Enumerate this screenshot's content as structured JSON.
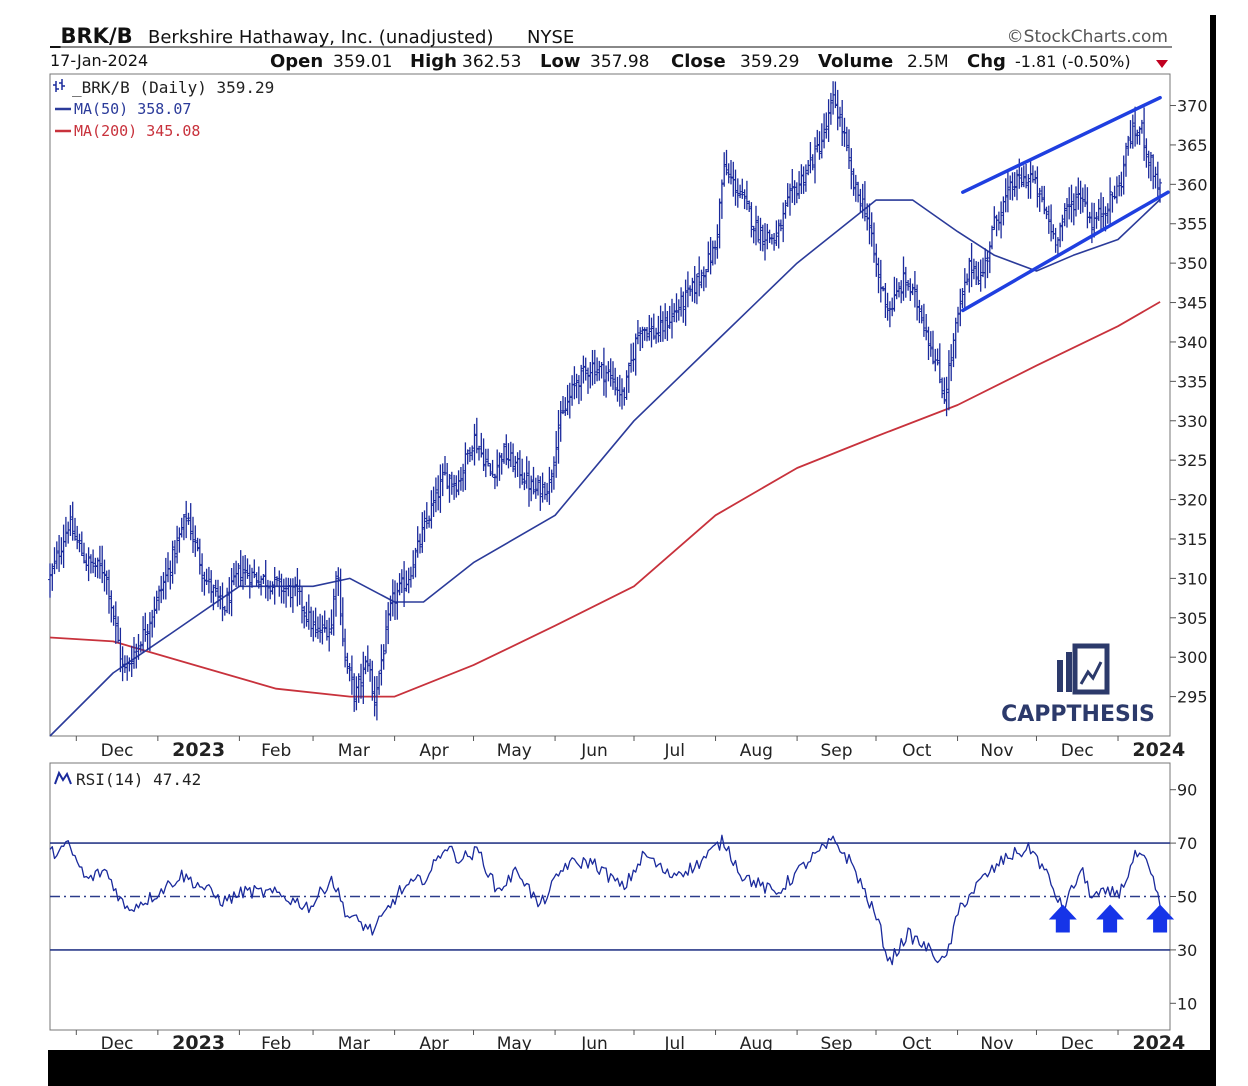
{
  "header": {
    "symbol": "_BRK/B",
    "company": "Berkshire Hathaway, Inc. (unadjusted)",
    "exchange": "NYSE",
    "source": "©StockCharts.com",
    "date": "17-Jan-2024",
    "open_label": "Open",
    "open_value": "359.01",
    "high_label": "High",
    "high_value": "362.53",
    "low_label": "Low",
    "low_value": "357.98",
    "close_label": "Close",
    "close_value": "359.29",
    "volume_label": "Volume",
    "volume_value": "2.5M",
    "chg_label": "Chg",
    "chg_value": "-1.81 (-0.50%)"
  },
  "legend": {
    "price": "_BRK/B (Daily) 359.29",
    "ma50": "MA(50) 358.07",
    "ma200": "MA(200) 345.08",
    "rsi": "RSI(14) 47.42"
  },
  "watermark": "CAPPTHESIS",
  "colors": {
    "price": "#1a2a9c",
    "ma50": "#2b3b9a",
    "ma200": "#c8323c",
    "channel": "#1f3fe0",
    "arrow": "#1634e8",
    "chg_down": "#c00020"
  },
  "chart_data": [
    {
      "type": "ohlc",
      "title": "_BRK/B (Daily)",
      "ylim": [
        290,
        374
      ],
      "y_ticks": [
        295,
        300,
        305,
        310,
        315,
        320,
        325,
        330,
        335,
        340,
        345,
        350,
        355,
        360,
        365,
        370
      ],
      "x_tick_labels": [
        "Dec",
        "2023",
        "Feb",
        "Mar",
        "Apr",
        "May",
        "Jun",
        "Jul",
        "Aug",
        "Sep",
        "Oct",
        "Nov",
        "Dec",
        "2024"
      ],
      "grid": false,
      "price_keypoints": [
        {
          "date": "2022-11-21",
          "close": 310
        },
        {
          "date": "2022-11-28",
          "close": 317
        },
        {
          "date": "2022-12-05",
          "close": 312
        },
        {
          "date": "2022-12-12",
          "close": 311
        },
        {
          "date": "2022-12-19",
          "close": 298
        },
        {
          "date": "2022-12-28",
          "close": 304
        },
        {
          "date": "2023-01-06",
          "close": 312
        },
        {
          "date": "2023-01-12",
          "close": 318
        },
        {
          "date": "2023-01-19",
          "close": 310
        },
        {
          "date": "2023-01-26",
          "close": 306
        },
        {
          "date": "2023-02-01",
          "close": 311
        },
        {
          "date": "2023-02-09",
          "close": 310
        },
        {
          "date": "2023-02-16",
          "close": 309
        },
        {
          "date": "2023-02-23",
          "close": 308
        },
        {
          "date": "2023-03-02",
          "close": 303
        },
        {
          "date": "2023-03-08",
          "close": 304
        },
        {
          "date": "2023-03-10",
          "close": 312
        },
        {
          "date": "2023-03-13",
          "close": 300
        },
        {
          "date": "2023-03-17",
          "close": 295
        },
        {
          "date": "2023-03-22",
          "close": 300
        },
        {
          "date": "2023-03-24",
          "close": 294
        },
        {
          "date": "2023-03-31",
          "close": 307
        },
        {
          "date": "2023-04-06",
          "close": 310
        },
        {
          "date": "2023-04-14",
          "close": 318
        },
        {
          "date": "2023-04-20",
          "close": 323
        },
        {
          "date": "2023-04-25",
          "close": 322
        },
        {
          "date": "2023-05-01",
          "close": 328
        },
        {
          "date": "2023-05-08",
          "close": 323
        },
        {
          "date": "2023-05-12",
          "close": 326
        },
        {
          "date": "2023-05-18",
          "close": 324
        },
        {
          "date": "2023-05-24",
          "close": 321
        },
        {
          "date": "2023-05-30",
          "close": 322
        },
        {
          "date": "2023-06-02",
          "close": 329
        },
        {
          "date": "2023-06-09",
          "close": 335
        },
        {
          "date": "2023-06-15",
          "close": 337
        },
        {
          "date": "2023-06-21",
          "close": 336
        },
        {
          "date": "2023-06-27",
          "close": 333
        },
        {
          "date": "2023-07-03",
          "close": 342
        },
        {
          "date": "2023-07-10",
          "close": 341
        },
        {
          "date": "2023-07-17",
          "close": 344
        },
        {
          "date": "2023-07-24",
          "close": 347
        },
        {
          "date": "2023-08-01",
          "close": 352
        },
        {
          "date": "2023-08-04",
          "close": 362
        },
        {
          "date": "2023-08-10",
          "close": 359
        },
        {
          "date": "2023-08-17",
          "close": 354
        },
        {
          "date": "2023-08-24",
          "close": 353
        },
        {
          "date": "2023-08-29",
          "close": 358
        },
        {
          "date": "2023-09-05",
          "close": 362
        },
        {
          "date": "2023-09-11",
          "close": 366
        },
        {
          "date": "2023-09-15",
          "close": 371
        },
        {
          "date": "2023-09-19",
          "close": 366
        },
        {
          "date": "2023-09-22",
          "close": 360
        },
        {
          "date": "2023-09-27",
          "close": 357
        },
        {
          "date": "2023-10-02",
          "close": 348
        },
        {
          "date": "2023-10-06",
          "close": 344
        },
        {
          "date": "2023-10-12",
          "close": 348
        },
        {
          "date": "2023-10-18",
          "close": 344
        },
        {
          "date": "2023-10-24",
          "close": 337
        },
        {
          "date": "2023-10-27",
          "close": 333
        },
        {
          "date": "2023-11-01",
          "close": 343
        },
        {
          "date": "2023-11-06",
          "close": 350
        },
        {
          "date": "2023-11-10",
          "close": 348
        },
        {
          "date": "2023-11-15",
          "close": 355
        },
        {
          "date": "2023-11-22",
          "close": 360
        },
        {
          "date": "2023-11-29",
          "close": 361
        },
        {
          "date": "2023-12-05",
          "close": 356
        },
        {
          "date": "2023-12-08",
          "close": 353
        },
        {
          "date": "2023-12-13",
          "close": 357
        },
        {
          "date": "2023-12-18",
          "close": 359
        },
        {
          "date": "2023-12-22",
          "close": 355
        },
        {
          "date": "2023-12-27",
          "close": 357
        },
        {
          "date": "2024-01-02",
          "close": 360
        },
        {
          "date": "2024-01-05",
          "close": 366
        },
        {
          "date": "2024-01-10",
          "close": 367
        },
        {
          "date": "2024-01-12",
          "close": 364
        },
        {
          "date": "2024-01-17",
          "close": 359.29
        }
      ],
      "ma50_keypoints": [
        {
          "date": "2022-11-21",
          "value": 290
        },
        {
          "date": "2022-12-15",
          "value": 298
        },
        {
          "date": "2023-01-06",
          "value": 303
        },
        {
          "date": "2023-02-01",
          "value": 309
        },
        {
          "date": "2023-03-01",
          "value": 309
        },
        {
          "date": "2023-03-15",
          "value": 310
        },
        {
          "date": "2023-04-01",
          "value": 307
        },
        {
          "date": "2023-04-12",
          "value": 307
        },
        {
          "date": "2023-05-01",
          "value": 312
        },
        {
          "date": "2023-06-01",
          "value": 318
        },
        {
          "date": "2023-07-01",
          "value": 330
        },
        {
          "date": "2023-08-01",
          "value": 340
        },
        {
          "date": "2023-09-01",
          "value": 350
        },
        {
          "date": "2023-10-01",
          "value": 358
        },
        {
          "date": "2023-10-15",
          "value": 358
        },
        {
          "date": "2023-11-01",
          "value": 354
        },
        {
          "date": "2023-11-15",
          "value": 351
        },
        {
          "date": "2023-12-01",
          "value": 349
        },
        {
          "date": "2023-12-15",
          "value": 351
        },
        {
          "date": "2024-01-01",
          "value": 353
        },
        {
          "date": "2024-01-17",
          "value": 358.07
        }
      ],
      "ma200_keypoints": [
        {
          "date": "2022-11-21",
          "value": 302.5
        },
        {
          "date": "2022-12-15",
          "value": 302
        },
        {
          "date": "2023-01-15",
          "value": 299
        },
        {
          "date": "2023-02-15",
          "value": 296
        },
        {
          "date": "2023-03-15",
          "value": 295
        },
        {
          "date": "2023-04-01",
          "value": 295
        },
        {
          "date": "2023-05-01",
          "value": 299
        },
        {
          "date": "2023-06-01",
          "value": 304
        },
        {
          "date": "2023-07-01",
          "value": 309
        },
        {
          "date": "2023-08-01",
          "value": 318
        },
        {
          "date": "2023-09-01",
          "value": 324
        },
        {
          "date": "2023-10-01",
          "value": 328
        },
        {
          "date": "2023-11-01",
          "value": 332
        },
        {
          "date": "2023-12-01",
          "value": 337
        },
        {
          "date": "2024-01-01",
          "value": 342
        },
        {
          "date": "2024-01-17",
          "value": 345.08
        }
      ],
      "channel_lines": [
        {
          "from": {
            "date": "2023-11-03",
            "value": 359
          },
          "to": {
            "date": "2024-01-17",
            "value": 371
          }
        },
        {
          "from": {
            "date": "2023-11-03",
            "value": 344
          },
          "to": {
            "date": "2024-01-20",
            "value": 359
          }
        }
      ]
    },
    {
      "type": "line",
      "title": "RSI(14)",
      "ylim": [
        0,
        100
      ],
      "y_ticks": [
        10,
        30,
        50,
        70,
        90
      ],
      "reference_lines": [
        30,
        50,
        70
      ],
      "x_tick_labels": [
        "Dec",
        "2023",
        "Feb",
        "Mar",
        "Apr",
        "May",
        "Jun",
        "Jul",
        "Aug",
        "Sep",
        "Oct",
        "Nov",
        "Dec",
        "2024"
      ],
      "keypoints": [
        {
          "date": "2022-11-21",
          "value": 66
        },
        {
          "date": "2022-11-28",
          "value": 69
        },
        {
          "date": "2022-12-05",
          "value": 56
        },
        {
          "date": "2022-12-12",
          "value": 60
        },
        {
          "date": "2022-12-20",
          "value": 45
        },
        {
          "date": "2022-12-30",
          "value": 50
        },
        {
          "date": "2023-01-10",
          "value": 58
        },
        {
          "date": "2023-01-19",
          "value": 53
        },
        {
          "date": "2023-01-26",
          "value": 48
        },
        {
          "date": "2023-02-03",
          "value": 52
        },
        {
          "date": "2023-02-15",
          "value": 51
        },
        {
          "date": "2023-02-28",
          "value": 46
        },
        {
          "date": "2023-03-08",
          "value": 57
        },
        {
          "date": "2023-03-14",
          "value": 43
        },
        {
          "date": "2023-03-24",
          "value": 37
        },
        {
          "date": "2023-04-03",
          "value": 52
        },
        {
          "date": "2023-04-14",
          "value": 58
        },
        {
          "date": "2023-04-20",
          "value": 69
        },
        {
          "date": "2023-04-26",
          "value": 64
        },
        {
          "date": "2023-05-03",
          "value": 67
        },
        {
          "date": "2023-05-10",
          "value": 52
        },
        {
          "date": "2023-05-18",
          "value": 60
        },
        {
          "date": "2023-05-26",
          "value": 46
        },
        {
          "date": "2023-06-05",
          "value": 62
        },
        {
          "date": "2023-06-15",
          "value": 63
        },
        {
          "date": "2023-06-27",
          "value": 53
        },
        {
          "date": "2023-07-05",
          "value": 66
        },
        {
          "date": "2023-07-14",
          "value": 58
        },
        {
          "date": "2023-07-24",
          "value": 61
        },
        {
          "date": "2023-08-04",
          "value": 71
        },
        {
          "date": "2023-08-11",
          "value": 58
        },
        {
          "date": "2023-08-24",
          "value": 51
        },
        {
          "date": "2023-09-05",
          "value": 63
        },
        {
          "date": "2023-09-15",
          "value": 71
        },
        {
          "date": "2023-09-22",
          "value": 62
        },
        {
          "date": "2023-10-02",
          "value": 40
        },
        {
          "date": "2023-10-06",
          "value": 25
        },
        {
          "date": "2023-10-13",
          "value": 36
        },
        {
          "date": "2023-10-20",
          "value": 31
        },
        {
          "date": "2023-10-27",
          "value": 25
        },
        {
          "date": "2023-11-02",
          "value": 46
        },
        {
          "date": "2023-11-10",
          "value": 56
        },
        {
          "date": "2023-11-20",
          "value": 65
        },
        {
          "date": "2023-11-29",
          "value": 68
        },
        {
          "date": "2023-12-05",
          "value": 58
        },
        {
          "date": "2023-12-11",
          "value": 45
        },
        {
          "date": "2023-12-18",
          "value": 60
        },
        {
          "date": "2023-12-22",
          "value": 50
        },
        {
          "date": "2024-01-02",
          "value": 52
        },
        {
          "date": "2024-01-08",
          "value": 66
        },
        {
          "date": "2024-01-12",
          "value": 62
        },
        {
          "date": "2024-01-17",
          "value": 47.42
        }
      ],
      "markers": [
        {
          "type": "up-arrow",
          "date": "2023-12-11"
        },
        {
          "type": "up-arrow",
          "date": "2023-12-29"
        },
        {
          "type": "up-arrow",
          "date": "2024-01-17"
        }
      ]
    }
  ]
}
